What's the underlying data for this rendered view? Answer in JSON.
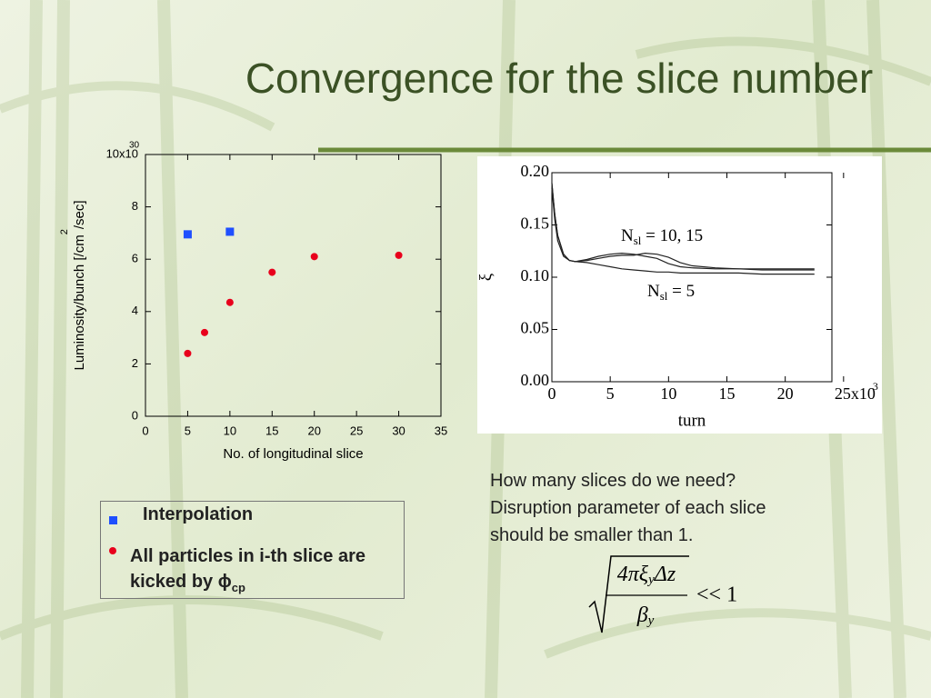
{
  "title": "Convergence for the slice number",
  "chart_data": [
    {
      "type": "scatter",
      "xlabel": "No. of longitudinal slice",
      "ylabel": "Luminosity/bunch [/cm",
      "ylabel_sup": "2",
      "ylabel_end": "/sec]",
      "xlim": [
        0,
        35
      ],
      "xticks": [
        0,
        5,
        10,
        15,
        20,
        25,
        30,
        35
      ],
      "ylim": [
        0,
        10
      ],
      "yticks": [
        0,
        2,
        4,
        6,
        8,
        {
          "value": 10,
          "label": "10x10"
        }
      ],
      "y_exponent": "30",
      "series": [
        {
          "name": "Interpolation",
          "color": "#1f4fff",
          "marker": "square",
          "x": [
            5,
            10
          ],
          "values": [
            6.95,
            7.05
          ]
        },
        {
          "name": "All particles in i-th slice are kicked by ϕ",
          "name_sub": "cp",
          "color": "#e8001c",
          "marker": "circle",
          "x": [
            5,
            7,
            10,
            15,
            20,
            30
          ],
          "values": [
            2.4,
            3.2,
            4.35,
            5.5,
            6.1,
            6.15
          ]
        }
      ]
    },
    {
      "type": "line",
      "xlabel": "turn",
      "ylabel": "ξ",
      "x": [
        0,
        0.25,
        0.5,
        1,
        1.5,
        2,
        3,
        4,
        5,
        6,
        7,
        8,
        9,
        10,
        11,
        12,
        14,
        16,
        18,
        20,
        22.5
      ],
      "xlim": [
        0,
        24
      ],
      "xticks": [
        0,
        5,
        10,
        15,
        20,
        {
          "value": 25,
          "label": "25x10"
        }
      ],
      "x_exponent": "3",
      "ylim": [
        0,
        0.2
      ],
      "yticks": [
        {
          "value": 0,
          "label": "0.00"
        },
        {
          "value": 0.05,
          "label": "0.05"
        },
        {
          "value": 0.1,
          "label": "0.10"
        },
        {
          "value": 0.15,
          "label": "0.15"
        },
        {
          "value": 0.2,
          "label": "0.20"
        }
      ],
      "series": [
        {
          "color": "#222222",
          "values": [
            0.19,
            0.16,
            0.14,
            0.122,
            0.116,
            0.115,
            0.117,
            0.12,
            0.122,
            0.123,
            0.122,
            0.12,
            0.118,
            0.113,
            0.11,
            0.109,
            0.108,
            0.108,
            0.107,
            0.107,
            0.107
          ]
        },
        {
          "color": "#222222",
          "values": [
            0.19,
            0.16,
            0.14,
            0.122,
            0.116,
            0.115,
            0.116,
            0.118,
            0.12,
            0.121,
            0.121,
            0.123,
            0.122,
            0.119,
            0.114,
            0.111,
            0.109,
            0.108,
            0.108,
            0.108,
            0.108
          ]
        },
        {
          "color": "#222222",
          "values": [
            0.185,
            0.155,
            0.135,
            0.12,
            0.116,
            0.115,
            0.114,
            0.112,
            0.11,
            0.108,
            0.107,
            0.106,
            0.105,
            0.105,
            0.104,
            0.104,
            0.104,
            0.104,
            0.103,
            0.103,
            0.103
          ]
        }
      ],
      "annotations": [
        {
          "text": "N",
          "sub": "sl",
          "rest": " = 10, 15"
        },
        {
          "text": "N",
          "sub": "sl",
          "rest": " = 5"
        }
      ]
    }
  ],
  "notes": [
    "How many slices do we need?",
    "Disruption parameter of each slice",
    "should be smaller than 1."
  ],
  "formula": {
    "num_a": "4πξ",
    "num_sub": "y",
    "num_b": "Δz",
    "den": "β",
    "den_sub": "y",
    "rhs": "<< 1"
  }
}
